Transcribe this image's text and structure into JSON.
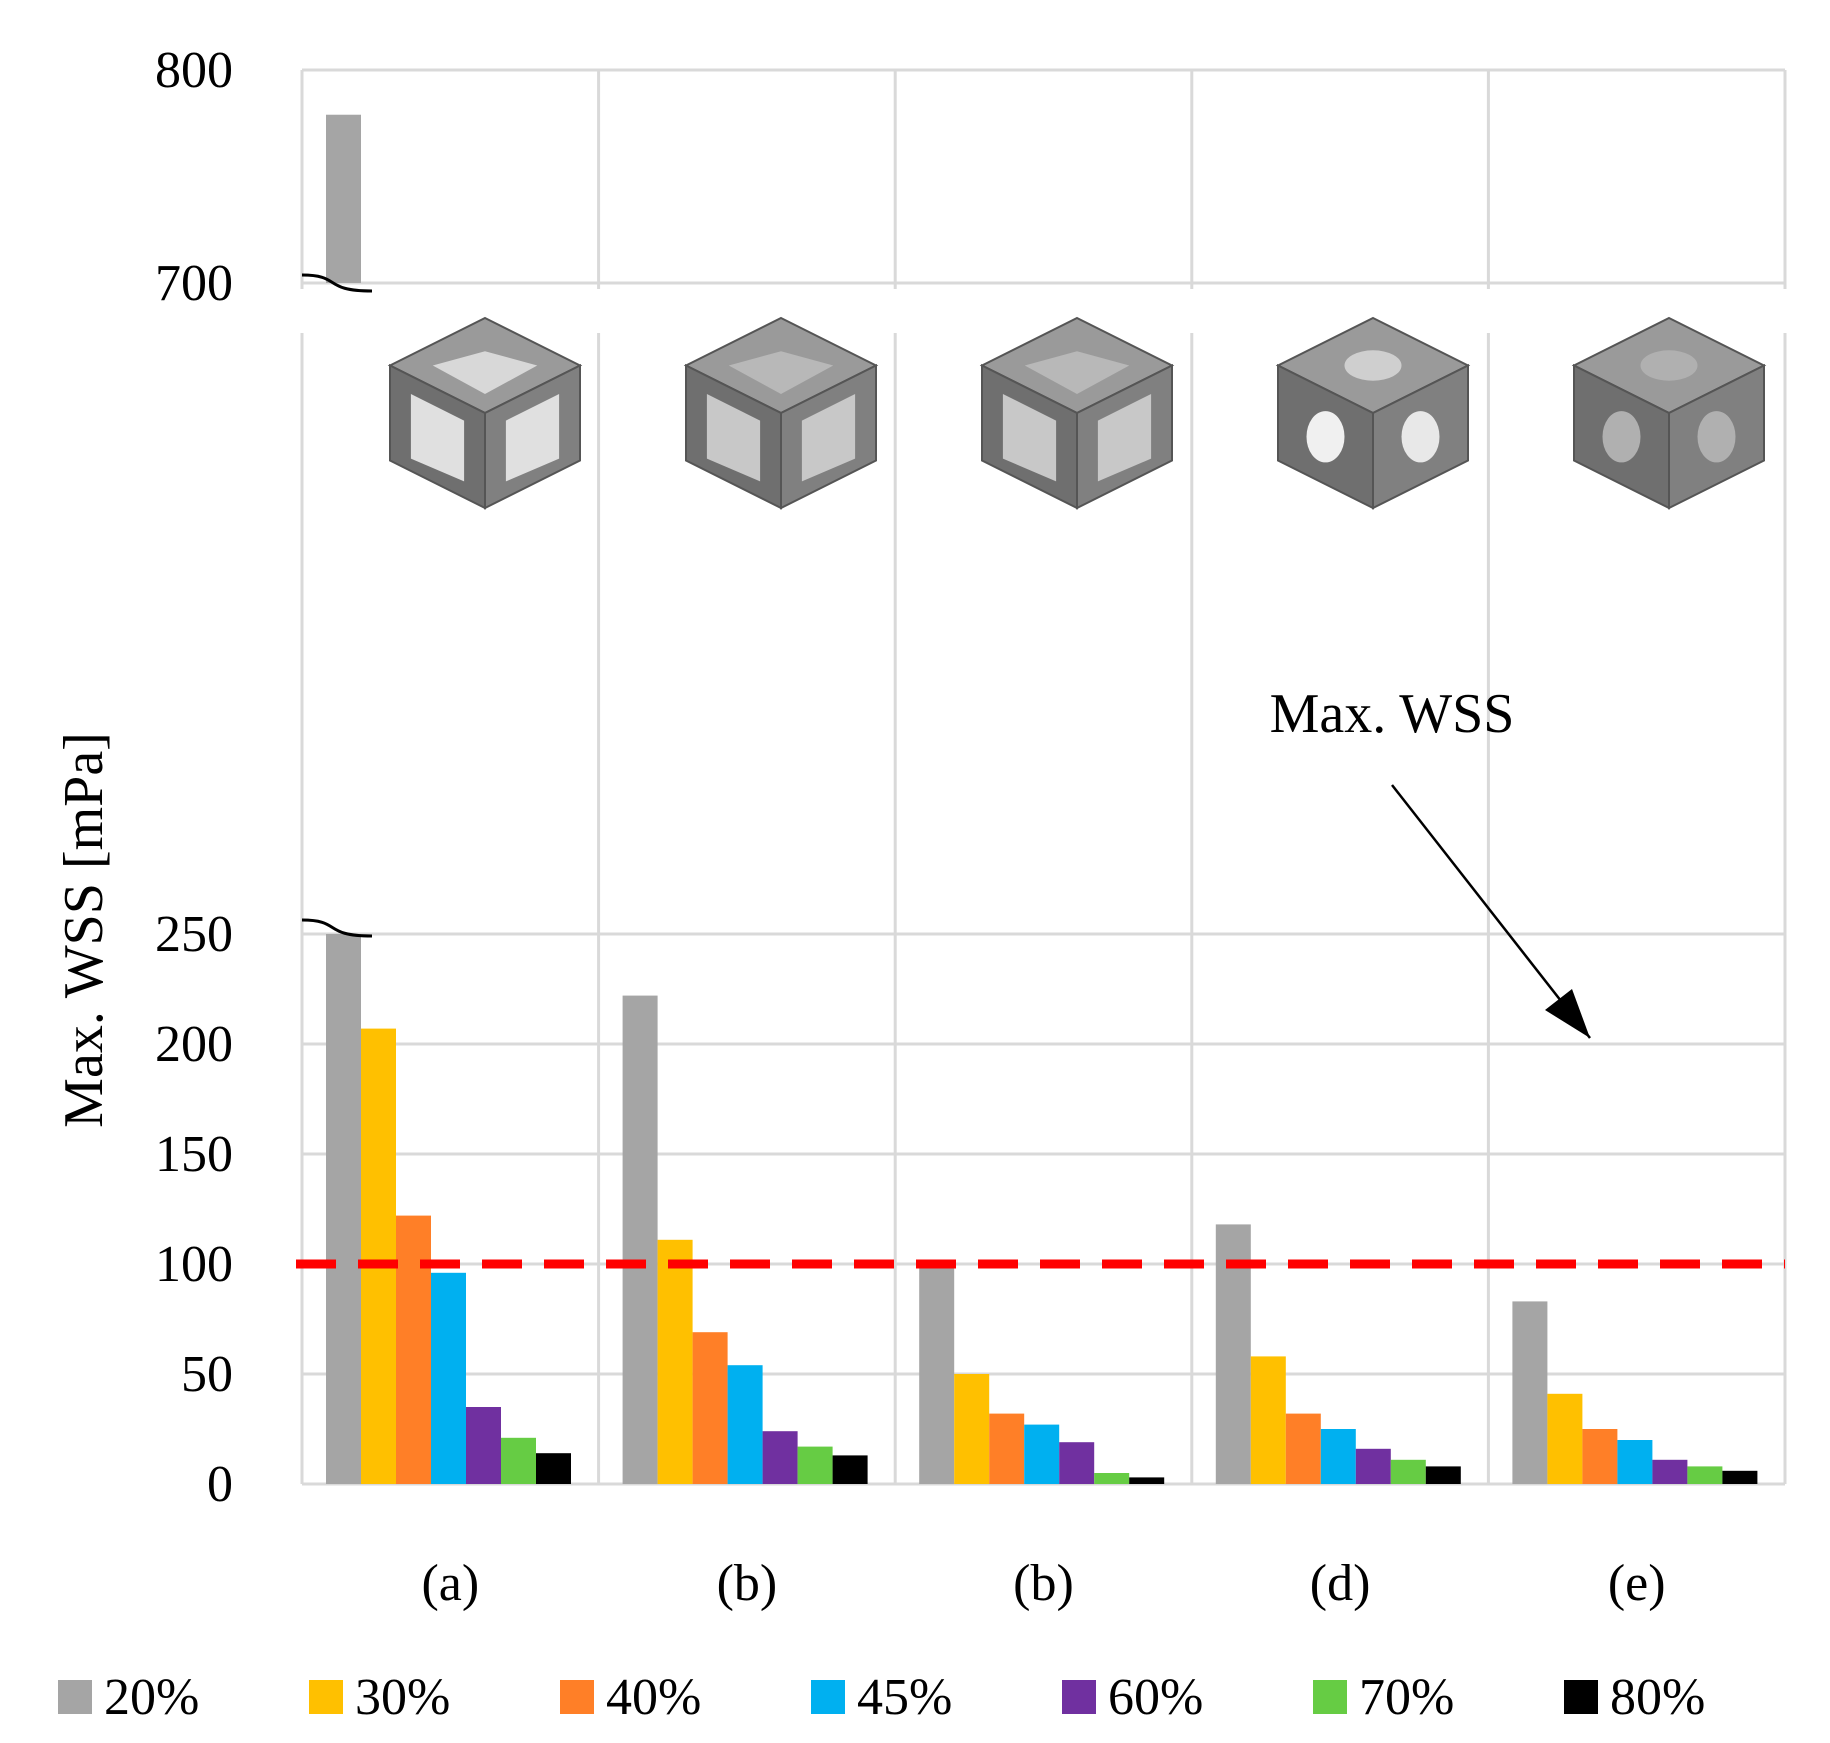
{
  "chart_data": {
    "type": "bar",
    "ylabel": "Max. WSS [mPa]",
    "categories": [
      "(a)",
      "(b)",
      "(b)",
      "(d)",
      "(e)"
    ],
    "y_ticks": [
      "0",
      "50",
      "100",
      "150",
      "200",
      "250",
      "700",
      "800"
    ],
    "axis_break": {
      "lower_range": [
        0,
        250
      ],
      "upper_range": [
        700,
        800
      ]
    },
    "series": [
      {
        "name": "20%",
        "color": "#a5a5a5",
        "values": [
          779,
          222,
          102,
          118,
          83
        ]
      },
      {
        "name": "30%",
        "color": "#ffc000",
        "values": [
          207,
          111,
          50,
          58,
          41
        ]
      },
      {
        "name": "40%",
        "color": "#ff7f27",
        "values": [
          122,
          69,
          32,
          32,
          25
        ]
      },
      {
        "name": "45%",
        "color": "#00b0f0",
        "values": [
          96,
          54,
          27,
          25,
          20
        ]
      },
      {
        "name": "60%",
        "color": "#7030a0",
        "values": [
          35,
          24,
          19,
          16,
          11
        ]
      },
      {
        "name": "70%",
        "color": "#66cc44",
        "values": [
          21,
          17,
          5,
          11,
          8
        ]
      },
      {
        "name": "80%",
        "color": "#000000",
        "values": [
          14,
          13,
          3,
          8,
          6
        ]
      }
    ],
    "threshold": {
      "value": 100,
      "label": "Max. WSS",
      "color": "#ff0000",
      "style": "dashed"
    },
    "grid": true,
    "legend_position": "bottom",
    "icons": [
      "cube-lattice-icon-a",
      "cube-lattice-icon-b",
      "cube-lattice-icon-c",
      "cube-lattice-icon-d",
      "cube-lattice-icon-e"
    ]
  }
}
